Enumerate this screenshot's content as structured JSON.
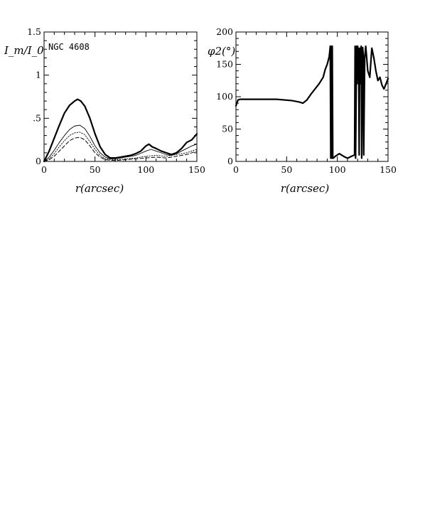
{
  "chart_data": [
    {
      "type": "line",
      "ylabel": "I_m/I_0",
      "xlabel": "r(arcsec)",
      "annotation": "NGC 4608",
      "xlim": [
        0,
        150
      ],
      "ylim": [
        0,
        1.5
      ],
      "xticks": [
        0,
        50,
        100,
        150
      ],
      "xtick_labels": [
        "0",
        "50",
        "100",
        "150"
      ],
      "yticks": [
        0,
        0.5,
        1,
        1.5
      ],
      "ytick_labels": [
        "0",
        ".5",
        "1",
        "1.5"
      ],
      "grid": false,
      "series": [
        {
          "style": "thick-solid",
          "x": [
            0,
            5,
            10,
            15,
            20,
            25,
            30,
            33,
            36,
            40,
            45,
            50,
            55,
            60,
            65,
            70,
            75,
            80,
            85,
            90,
            95,
            100,
            103,
            106,
            110,
            115,
            120,
            125,
            130,
            135,
            140,
            145,
            150
          ],
          "y": [
            0,
            0.12,
            0.27,
            0.42,
            0.56,
            0.65,
            0.7,
            0.72,
            0.7,
            0.64,
            0.5,
            0.32,
            0.17,
            0.08,
            0.04,
            0.04,
            0.05,
            0.06,
            0.07,
            0.09,
            0.12,
            0.18,
            0.2,
            0.17,
            0.15,
            0.12,
            0.1,
            0.08,
            0.1,
            0.15,
            0.22,
            0.25,
            0.32
          ]
        },
        {
          "style": "thin-solid",
          "x": [
            0,
            5,
            10,
            15,
            20,
            25,
            30,
            35,
            40,
            45,
            50,
            55,
            60,
            65,
            70,
            80,
            90,
            100,
            105,
            110,
            115,
            120,
            125,
            130,
            135,
            140,
            145,
            150
          ],
          "y": [
            0,
            0.05,
            0.13,
            0.22,
            0.3,
            0.37,
            0.41,
            0.42,
            0.38,
            0.29,
            0.18,
            0.1,
            0.05,
            0.03,
            0.03,
            0.05,
            0.07,
            0.12,
            0.14,
            0.12,
            0.1,
            0.08,
            0.07,
            0.09,
            0.12,
            0.15,
            0.18,
            0.2
          ]
        },
        {
          "style": "dotted",
          "x": [
            0,
            5,
            10,
            15,
            20,
            25,
            30,
            35,
            40,
            45,
            50,
            55,
            60,
            70,
            80,
            90,
            100,
            110,
            120,
            130,
            140,
            150
          ],
          "y": [
            0,
            0.03,
            0.09,
            0.17,
            0.24,
            0.3,
            0.33,
            0.34,
            0.31,
            0.23,
            0.14,
            0.07,
            0.03,
            0.02,
            0.03,
            0.04,
            0.06,
            0.07,
            0.06,
            0.08,
            0.1,
            0.14
          ]
        },
        {
          "style": "dashed",
          "x": [
            0,
            5,
            10,
            15,
            20,
            25,
            30,
            35,
            40,
            45,
            50,
            55,
            60,
            70,
            80,
            90,
            100,
            110,
            120,
            130,
            140,
            150
          ],
          "y": [
            0,
            0.02,
            0.06,
            0.12,
            0.18,
            0.24,
            0.27,
            0.28,
            0.25,
            0.18,
            0.1,
            0.05,
            0.02,
            0.01,
            0.02,
            0.03,
            0.04,
            0.05,
            0.04,
            0.06,
            0.08,
            0.12
          ]
        }
      ]
    },
    {
      "type": "line",
      "ylabel": "φ2(°)",
      "xlabel": "r(arcsec)",
      "xlim": [
        0,
        150
      ],
      "ylim": [
        0,
        200
      ],
      "xticks": [
        0,
        50,
        100,
        150
      ],
      "xtick_labels": [
        "0",
        "50",
        "100",
        "150"
      ],
      "yticks": [
        0,
        50,
        100,
        150,
        200
      ],
      "ytick_labels": [
        "0",
        "50",
        "100",
        "150",
        "200"
      ],
      "grid": false,
      "series": [
        {
          "style": "thick-solid",
          "x": [
            0,
            2,
            4,
            8,
            20,
            40,
            55,
            62,
            66,
            70,
            74,
            78,
            82,
            86,
            88,
            90,
            92,
            93,
            93.5,
            94,
            94.5,
            95,
            95.5,
            96,
            98,
            102,
            106,
            110,
            114,
            117,
            117.5,
            118,
            119,
            119.5,
            120,
            121,
            121.5,
            122,
            123,
            123.5,
            124,
            125,
            125.5,
            126,
            127,
            128,
            130,
            132,
            134,
            136,
            138,
            140,
            142,
            144,
            146,
            148,
            150
          ],
          "y": [
            86,
            95,
            96,
            96,
            96,
            96,
            94,
            92,
            90,
            95,
            104,
            112,
            120,
            130,
            142,
            150,
            162,
            178,
            5,
            178,
            5,
            178,
            5,
            5,
            8,
            12,
            8,
            5,
            8,
            10,
            178,
            5,
            178,
            120,
            178,
            170,
            10,
            175,
            120,
            178,
            5,
            176,
            165,
            10,
            160,
            178,
            140,
            130,
            175,
            160,
            140,
            125,
            130,
            118,
            112,
            120,
            128
          ]
        }
      ]
    }
  ]
}
